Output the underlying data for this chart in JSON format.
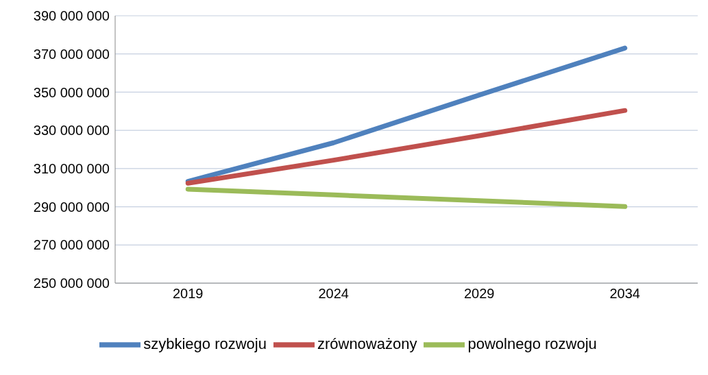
{
  "chart_data": {
    "type": "line",
    "categories": [
      "2019",
      "2024",
      "2029",
      "2034"
    ],
    "series": [
      {
        "name": "szybkiego rozwoju",
        "color": "#4f81bd",
        "values": [
          303300000,
          323500000,
          348500000,
          373100000
        ]
      },
      {
        "name": "zrównoważony",
        "color": "#c0504d",
        "values": [
          302300000,
          314400000,
          327200000,
          340400000
        ]
      },
      {
        "name": "powolnego rozwoju",
        "color": "#9bbb59",
        "values": [
          299200000,
          296200000,
          293200000,
          290100000
        ]
      }
    ],
    "ylim": [
      250000000,
      390000000
    ],
    "yticks": [
      {
        "value": 250000000,
        "label": "250 000 000"
      },
      {
        "value": 270000000,
        "label": "270 000 000"
      },
      {
        "value": 290000000,
        "label": "290 000 000"
      },
      {
        "value": 310000000,
        "label": "310 000 000"
      },
      {
        "value": 330000000,
        "label": "330 000 000"
      },
      {
        "value": 350000000,
        "label": "350 000 000"
      },
      {
        "value": 370000000,
        "label": "370 000 000"
      },
      {
        "value": 390000000,
        "label": "390 000 000"
      }
    ],
    "grid": "y",
    "legend": "bottom",
    "marker": "none",
    "line_style": "solid"
  }
}
